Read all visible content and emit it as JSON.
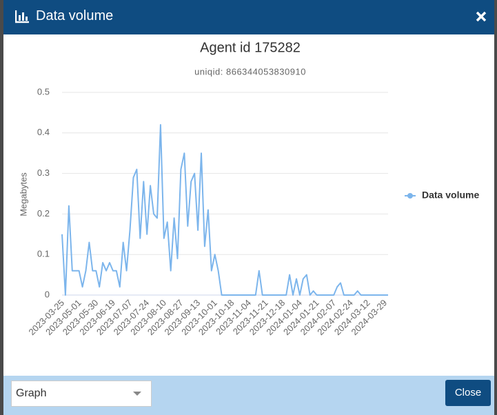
{
  "dialog": {
    "title": "Data volume",
    "select_value": "Graph",
    "close_button": "Close"
  },
  "chart_data": {
    "type": "line",
    "title": "Agent id 175282",
    "subtitle": "uniqid: 866344053830910",
    "y_label": "Megabytes",
    "categories": [
      "2023-03-25",
      null,
      null,
      null,
      null,
      "2023-05-01",
      null,
      null,
      null,
      null,
      "2023-05-30",
      null,
      null,
      null,
      null,
      "2023-06-19",
      null,
      null,
      null,
      null,
      "2023-07-07",
      null,
      null,
      null,
      null,
      "2023-07-24",
      null,
      null,
      null,
      null,
      "2023-08-10",
      null,
      null,
      null,
      null,
      "2023-08-27",
      null,
      null,
      null,
      null,
      "2023-09-13",
      null,
      null,
      null,
      null,
      "2023-10-01",
      null,
      null,
      null,
      null,
      "2023-10-18",
      null,
      null,
      null,
      null,
      "2023-11-04",
      null,
      null,
      null,
      null,
      "2023-11-21",
      null,
      null,
      null,
      null,
      "2023-12-18",
      null,
      null,
      null,
      null,
      "2024-01-04",
      null,
      null,
      null,
      null,
      "2024-01-21",
      null,
      null,
      null,
      null,
      "2024-02-07",
      null,
      null,
      null,
      null,
      "2024-02-24",
      null,
      null,
      null,
      null,
      "2024-03-12",
      null,
      null,
      null,
      null,
      "2024-03-29",
      null
    ],
    "series": [
      {
        "name": "Data volume",
        "color": "#7cb5ec",
        "values": [
          0.15,
          0,
          0.22,
          0.06,
          0.06,
          0.06,
          0.02,
          0.06,
          0.13,
          0.06,
          0.06,
          0.02,
          0.08,
          0.06,
          0.08,
          0.06,
          0.06,
          0.02,
          0.13,
          0.06,
          0.16,
          0.29,
          0.31,
          0.14,
          0.28,
          0.15,
          0.27,
          0.2,
          0.19,
          0.42,
          0.14,
          0.18,
          0.06,
          0.19,
          0.09,
          0.31,
          0.35,
          0.17,
          0.28,
          0.3,
          0.16,
          0.35,
          0.12,
          0.21,
          0.06,
          0.1,
          0.06,
          0,
          0,
          0,
          0,
          0,
          0,
          0,
          0,
          0,
          0,
          0,
          0.06,
          0,
          0,
          0,
          0,
          0,
          0,
          0,
          0,
          0.05,
          0,
          0.04,
          0,
          0.04,
          0.05,
          0,
          0.01,
          0,
          0,
          0,
          0,
          0,
          0,
          0.02,
          0.03,
          0,
          0,
          0,
          0,
          0.01,
          0,
          0,
          0,
          0,
          0,
          0,
          0,
          0,
          0
        ]
      }
    ],
    "ylim": [
      0,
      0.5
    ],
    "yticks": [
      0,
      0.1,
      0.2,
      0.3,
      0.4,
      0.5
    ],
    "grid": true,
    "legend": "right"
  }
}
